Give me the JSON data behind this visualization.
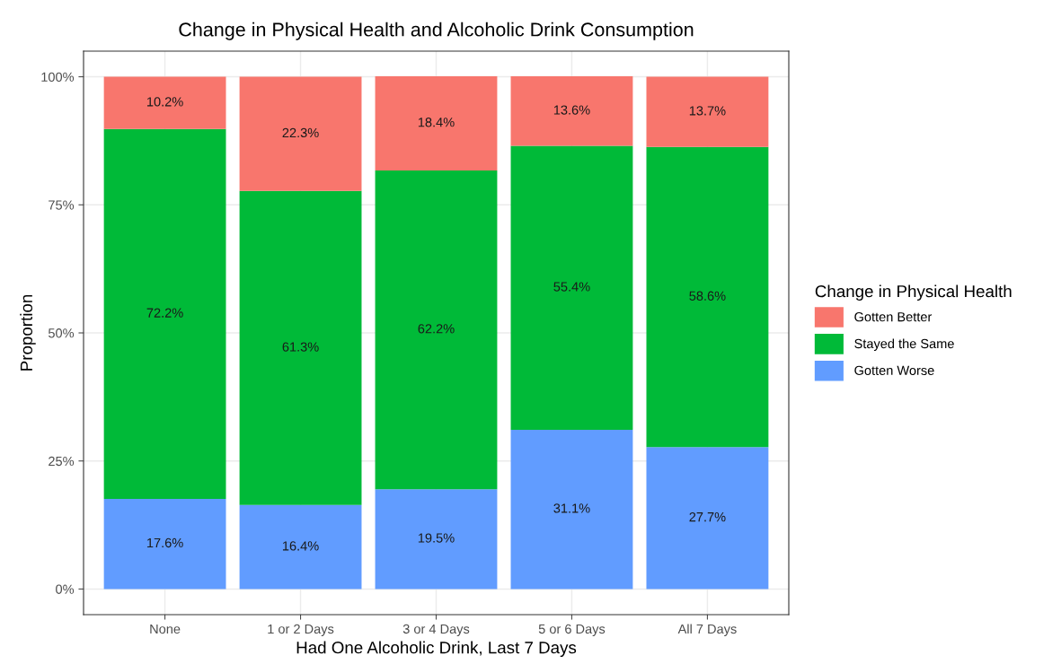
{
  "chart_data": {
    "type": "bar",
    "title": "Change in Physical Health and Alcoholic Drink Consumption",
    "xlabel": "Had One Alcoholic Drink, Last 7 Days",
    "ylabel": "Proportion",
    "legend_title": "Change in Physical Health",
    "categories": [
      "None",
      "1 or 2 Days",
      "3 or 4 Days",
      "5 or 6 Days",
      "All 7 Days"
    ],
    "stacked": true,
    "series": [
      {
        "name": "Gotten Worse",
        "color": "#619cff",
        "values": [
          17.6,
          16.4,
          19.5,
          31.1,
          27.7
        ],
        "value_labels": [
          "17.6%",
          "16.4%",
          "19.5%",
          "31.1%",
          "27.7%"
        ]
      },
      {
        "name": "Stayed the Same",
        "color": "#00ba38",
        "values": [
          72.2,
          61.3,
          62.2,
          55.4,
          58.6
        ],
        "value_labels": [
          "72.2%",
          "61.3%",
          "62.2%",
          "55.4%",
          "58.6%"
        ]
      },
      {
        "name": "Gotten Better",
        "color": "#f8766d",
        "values": [
          10.2,
          22.3,
          18.4,
          13.6,
          13.7
        ],
        "value_labels": [
          "10.2%",
          "22.3%",
          "18.4%",
          "13.6%",
          "13.7%"
        ]
      }
    ],
    "ylim": [
      -5,
      105
    ],
    "yticks": [
      {
        "value": 0,
        "label": "0%"
      },
      {
        "value": 25,
        "label": "25%"
      },
      {
        "value": 50,
        "label": "50%"
      },
      {
        "value": 75,
        "label": "75%"
      },
      {
        "value": 100,
        "label": "100%"
      }
    ],
    "grid": true,
    "legend": "right"
  }
}
